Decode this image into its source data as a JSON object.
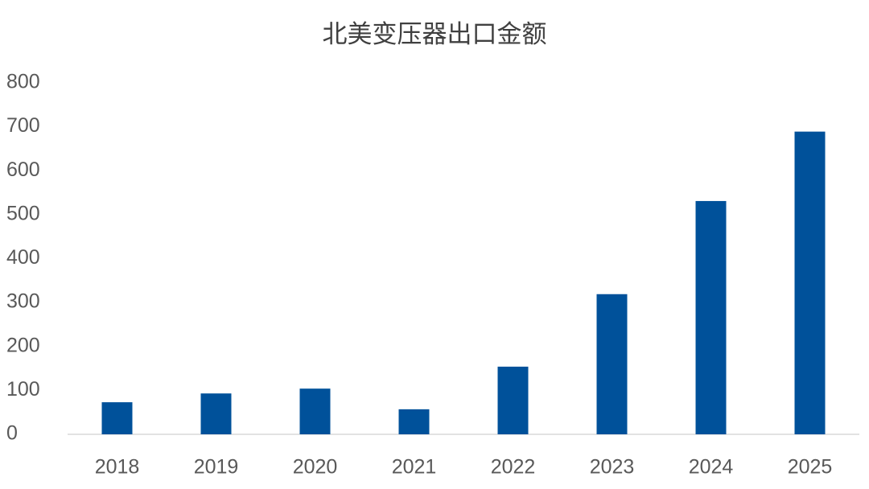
{
  "chart_data": {
    "type": "bar",
    "title": "北美变压器出口金额",
    "categories": [
      "2018",
      "2019",
      "2020",
      "2021",
      "2022",
      "2023",
      "2024",
      "2025"
    ],
    "values": [
      73,
      93,
      104,
      57,
      154,
      319,
      531,
      689
    ],
    "color": "#00519a",
    "ylim": [
      0,
      800
    ],
    "yticks": [
      0,
      100,
      200,
      300,
      400,
      500,
      600,
      700,
      800
    ],
    "grid": false
  }
}
